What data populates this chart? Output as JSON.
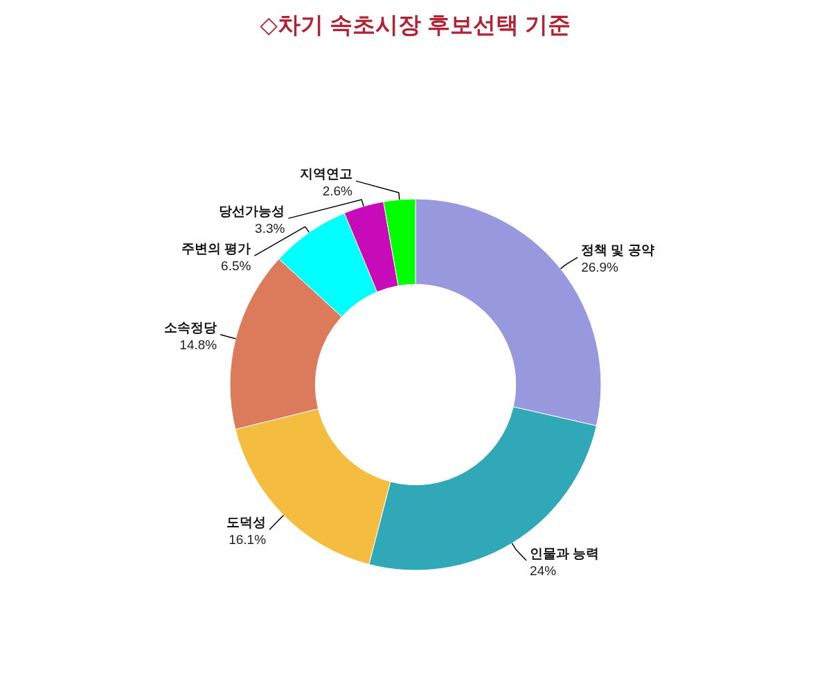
{
  "chart_data": {
    "type": "donut",
    "title": "◇차기 속초시장 후보선택 기준",
    "categories": [
      "정책 및 공약",
      "인물과 능력",
      "도덕성",
      "소속정당",
      "주변의 평가",
      "당선가능성",
      "지역연고"
    ],
    "values": [
      26.9,
      24,
      16.1,
      14.8,
      6.5,
      3.3,
      2.6
    ],
    "colors": [
      "#9898de",
      "#31a8b8",
      "#f5bd3f",
      "#dc7a5c",
      "#00ffff",
      "#c80bb8",
      "#00ff00"
    ],
    "value_labels": [
      "26.9%",
      "24%",
      "16.1%",
      "14.8%",
      "6.5%",
      "3.3%",
      "2.6%"
    ]
  }
}
